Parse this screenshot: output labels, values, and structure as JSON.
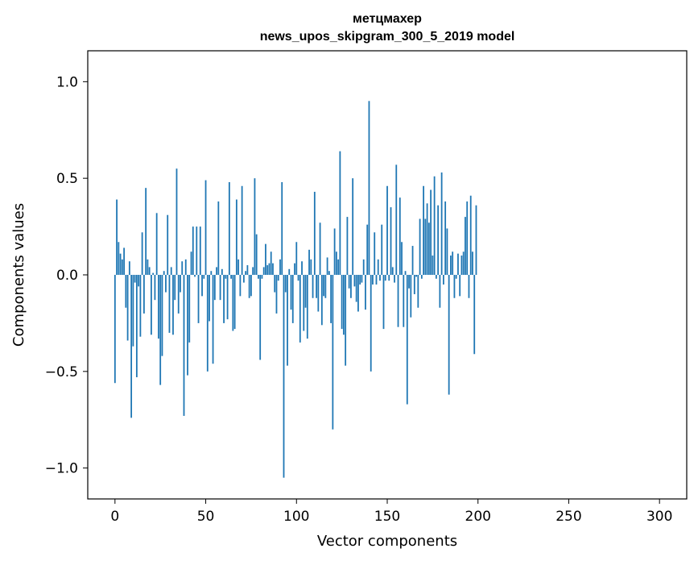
{
  "chart_data": {
    "type": "bar",
    "title_line1": "метцмахер",
    "title_line2": "news_upos_skipgram_300_5_2019 model",
    "xlabel": "Vector components",
    "ylabel": "Components values",
    "xlim": [
      -15,
      315
    ],
    "ylim": [
      -1.16,
      1.16
    ],
    "xticks": [
      0,
      50,
      100,
      150,
      200,
      250,
      300
    ],
    "xtick_labels": [
      "0",
      "50",
      "100",
      "150",
      "200",
      "250",
      "300"
    ],
    "yticks": [
      -1.0,
      -0.5,
      0.0,
      0.5,
      1.0
    ],
    "ytick_labels": [
      "−1.0",
      "−0.5",
      "0.0",
      "0.5",
      "1.0"
    ],
    "bar_color": "#1f77b4",
    "values": [
      -0.56,
      0.39,
      0.17,
      0.11,
      0.08,
      0.14,
      -0.17,
      -0.34,
      0.07,
      -0.74,
      -0.37,
      -0.04,
      -0.53,
      -0.06,
      -0.32,
      0.22,
      -0.2,
      0.45,
      0.08,
      0.04,
      -0.31,
      0.01,
      -0.13,
      0.32,
      -0.33,
      -0.57,
      -0.42,
      0.02,
      -0.09,
      0.31,
      -0.3,
      0.04,
      -0.31,
      -0.13,
      0.55,
      -0.2,
      -0.09,
      0.07,
      -0.73,
      0.08,
      -0.52,
      -0.35,
      0.12,
      0.25,
      -0.01,
      0.25,
      -0.25,
      0.25,
      -0.11,
      -0.02,
      0.49,
      -0.5,
      -0.24,
      0.02,
      -0.46,
      -0.13,
      0.04,
      0.38,
      -0.13,
      0.03,
      -0.25,
      -0.02,
      -0.23,
      0.48,
      -0.02,
      -0.29,
      -0.28,
      0.39,
      0.08,
      -0.11,
      0.46,
      -0.04,
      0.02,
      0.05,
      -0.12,
      -0.11,
      0.04,
      0.5,
      0.21,
      -0.02,
      -0.44,
      -0.02,
      0.04,
      0.16,
      0.05,
      0.06,
      0.12,
      0.06,
      -0.09,
      -0.2,
      -0.03,
      0.08,
      0.48,
      -1.05,
      -0.09,
      -0.47,
      0.03,
      -0.18,
      -0.25,
      0.06,
      0.17,
      -0.03,
      -0.35,
      0.07,
      -0.29,
      -0.17,
      -0.33,
      0.13,
      0.08,
      -0.12,
      0.43,
      -0.12,
      -0.19,
      0.27,
      -0.26,
      -0.11,
      -0.12,
      0.09,
      0.02,
      -0.25,
      -0.8,
      0.24,
      0.12,
      0.08,
      0.64,
      -0.28,
      -0.31,
      -0.47,
      0.3,
      -0.07,
      -0.12,
      0.5,
      -0.06,
      -0.14,
      -0.19,
      -0.05,
      -0.04,
      0.08,
      -0.18,
      0.26,
      0.9,
      -0.5,
      -0.05,
      0.22,
      -0.05,
      0.08,
      -0.03,
      0.26,
      -0.28,
      -0.03,
      0.46,
      -0.03,
      0.35,
      0.04,
      -0.04,
      0.57,
      -0.27,
      0.4,
      0.17,
      -0.27,
      0.02,
      -0.67,
      -0.07,
      -0.22,
      0.15,
      -0.1,
      -0.01,
      -0.17,
      0.29,
      -0.02,
      0.46,
      0.29,
      0.37,
      0.27,
      0.44,
      0.1,
      0.51,
      -0.02,
      0.36,
      -0.17,
      0.53,
      -0.05,
      0.38,
      0.24,
      -0.62,
      0.1,
      0.12,
      -0.12,
      -0.02,
      0.11,
      -0.11,
      0.1,
      0.12,
      0.3,
      0.38,
      -0.12,
      0.41,
      0.12,
      -0.41,
      0.36
    ]
  }
}
